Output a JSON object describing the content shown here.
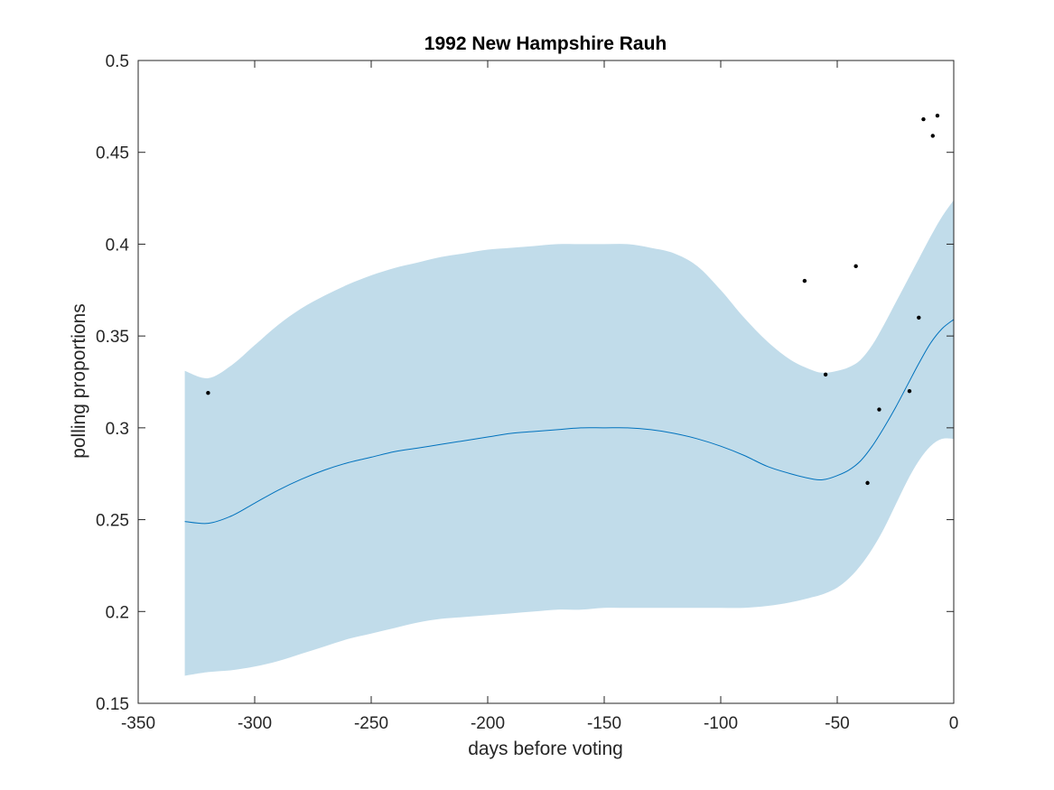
{
  "chart_data": {
    "type": "line",
    "title": "1992 New Hampshire Rauh",
    "xlabel": "days before voting",
    "ylabel": "polling proportions",
    "xlim": [
      -350,
      0
    ],
    "ylim": [
      0.15,
      0.5
    ],
    "xticks": [
      -350,
      -300,
      -250,
      -200,
      -150,
      -100,
      -50,
      0
    ],
    "yticks": [
      0.15,
      0.2,
      0.25,
      0.3,
      0.35,
      0.4,
      0.45,
      0.5
    ],
    "xtick_labels": [
      "-350",
      "-300",
      "-250",
      "-200",
      "-150",
      "-100",
      "-50",
      "0"
    ],
    "ytick_labels": [
      "0.15",
      "0.2",
      "0.25",
      "0.3",
      "0.35",
      "0.4",
      "0.45",
      "0.5"
    ],
    "grid": false,
    "colors": {
      "band": "#c1dcea",
      "line": "#0072bd",
      "points": "#000000",
      "axes": "#262626"
    },
    "series": [
      {
        "kind": "band",
        "x": [
          -330,
          -320,
          -310,
          -300,
          -290,
          -280,
          -270,
          -260,
          -250,
          -240,
          -230,
          -220,
          -210,
          -200,
          -190,
          -180,
          -170,
          -160,
          -150,
          -140,
          -130,
          -120,
          -110,
          -100,
          -90,
          -80,
          -70,
          -60,
          -55,
          -50,
          -45,
          -40,
          -35,
          -30,
          -25,
          -20,
          -15,
          -10,
          -5,
          0
        ],
        "upper": [
          0.331,
          0.327,
          0.334,
          0.345,
          0.356,
          0.365,
          0.372,
          0.378,
          0.383,
          0.387,
          0.39,
          0.393,
          0.395,
          0.397,
          0.398,
          0.399,
          0.4,
          0.4,
          0.4,
          0.4,
          0.398,
          0.395,
          0.388,
          0.375,
          0.36,
          0.347,
          0.337,
          0.331,
          0.33,
          0.331,
          0.333,
          0.337,
          0.345,
          0.356,
          0.368,
          0.38,
          0.392,
          0.404,
          0.415,
          0.424
        ],
        "lower": [
          0.165,
          0.167,
          0.168,
          0.17,
          0.173,
          0.177,
          0.181,
          0.185,
          0.188,
          0.191,
          0.194,
          0.196,
          0.197,
          0.198,
          0.199,
          0.2,
          0.201,
          0.201,
          0.202,
          0.202,
          0.202,
          0.202,
          0.202,
          0.202,
          0.202,
          0.203,
          0.205,
          0.208,
          0.21,
          0.213,
          0.218,
          0.225,
          0.234,
          0.245,
          0.258,
          0.271,
          0.282,
          0.29,
          0.294,
          0.294
        ]
      },
      {
        "kind": "line",
        "x": [
          -330,
          -320,
          -310,
          -300,
          -290,
          -280,
          -270,
          -260,
          -250,
          -240,
          -230,
          -220,
          -210,
          -200,
          -190,
          -180,
          -170,
          -160,
          -150,
          -140,
          -130,
          -120,
          -110,
          -100,
          -90,
          -80,
          -70,
          -60,
          -55,
          -50,
          -45,
          -40,
          -35,
          -30,
          -25,
          -20,
          -15,
          -10,
          -5,
          0
        ],
        "y": [
          0.249,
          0.248,
          0.252,
          0.259,
          0.266,
          0.272,
          0.277,
          0.281,
          0.284,
          0.287,
          0.289,
          0.291,
          0.293,
          0.295,
          0.297,
          0.298,
          0.299,
          0.3,
          0.3,
          0.3,
          0.299,
          0.297,
          0.294,
          0.29,
          0.285,
          0.279,
          0.275,
          0.272,
          0.272,
          0.274,
          0.277,
          0.282,
          0.29,
          0.3,
          0.311,
          0.323,
          0.335,
          0.346,
          0.354,
          0.359
        ]
      },
      {
        "kind": "scatter",
        "points": [
          {
            "x": -320,
            "y": 0.319
          },
          {
            "x": -64,
            "y": 0.38
          },
          {
            "x": -55,
            "y": 0.329
          },
          {
            "x": -42,
            "y": 0.388
          },
          {
            "x": -37,
            "y": 0.27
          },
          {
            "x": -32,
            "y": 0.31
          },
          {
            "x": -19,
            "y": 0.32
          },
          {
            "x": -15,
            "y": 0.36
          },
          {
            "x": -13,
            "y": 0.468
          },
          {
            "x": -9,
            "y": 0.459
          },
          {
            "x": -7,
            "y": 0.47
          }
        ]
      }
    ]
  }
}
